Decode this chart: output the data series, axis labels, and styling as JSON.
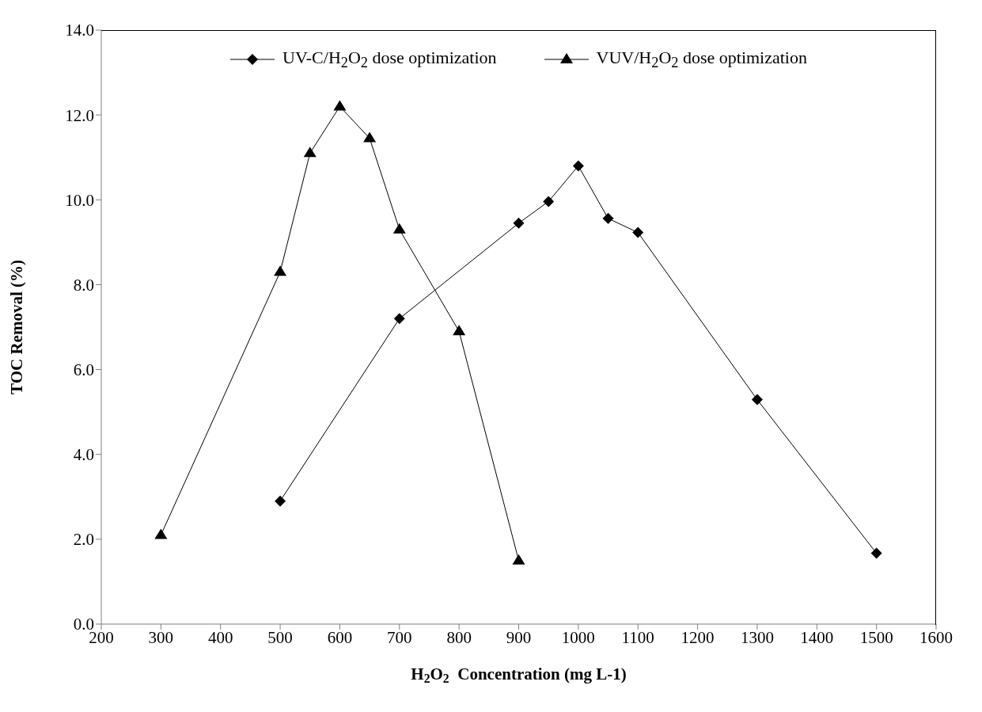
{
  "chart_data": {
    "type": "line",
    "xlabel": "H$_{2}$O$_{2}$  Concentration (mg L-1)",
    "ylabel": "TOC Removal (%)",
    "xlim": [
      200,
      1600
    ],
    "xticks": [
      200,
      300,
      400,
      500,
      600,
      700,
      800,
      900,
      1000,
      1100,
      1200,
      1300,
      1400,
      1500,
      1600
    ],
    "ylim": [
      0,
      14
    ],
    "yticks": [
      {
        "value": 0,
        "label": "0.0"
      },
      {
        "value": 2,
        "label": "2.0"
      },
      {
        "value": 4,
        "label": "4.0"
      },
      {
        "value": 6,
        "label": "6.0"
      },
      {
        "value": 8,
        "label": "8.0"
      },
      {
        "value": 10,
        "label": "10.0"
      },
      {
        "value": 12,
        "label": "12.0"
      },
      {
        "value": 14,
        "label": "14.0"
      }
    ],
    "grid": false,
    "legend": "top",
    "line_style": "solid",
    "series": [
      {
        "name": "UV-C/H$_{2}$O$_{2}$ dose optimization",
        "color": "#000000",
        "marker": "diamond",
        "x": [
          500,
          700,
          900,
          950,
          1000,
          1050,
          1100,
          1300,
          1500
        ],
        "values": [
          2.9,
          7.2,
          9.45,
          9.96,
          10.8,
          9.56,
          9.23,
          5.29,
          1.67
        ]
      },
      {
        "name": "VUV/H$_{2}$O$_{2}$ dose optimization",
        "color": "#000000",
        "marker": "triangle",
        "x": [
          300,
          500,
          550,
          600,
          650,
          700,
          800,
          900
        ],
        "values": [
          2.1,
          8.3,
          11.1,
          12.2,
          11.45,
          9.3,
          6.9,
          1.5
        ]
      }
    ]
  }
}
